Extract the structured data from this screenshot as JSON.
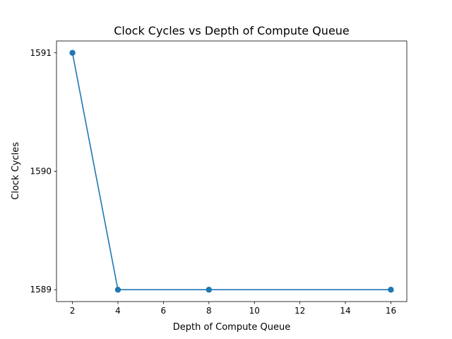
{
  "chart_data": {
    "type": "line",
    "title": "Clock Cycles vs Depth of Compute Queue",
    "xlabel": "Depth of Compute Queue",
    "ylabel": "Clock Cycles",
    "x": [
      2,
      4,
      8,
      16
    ],
    "series": [
      {
        "values": [
          1591,
          1589,
          1589,
          1589
        ],
        "color": "#1f77b4",
        "marker": "circle"
      }
    ],
    "xlim": [
      1.3,
      16.7
    ],
    "ylim": [
      1588.9,
      1591.1
    ],
    "xticks": [
      2,
      4,
      6,
      8,
      10,
      12,
      14,
      16
    ],
    "yticks": [
      1589,
      1590,
      1591
    ],
    "grid": false,
    "legend": false
  }
}
